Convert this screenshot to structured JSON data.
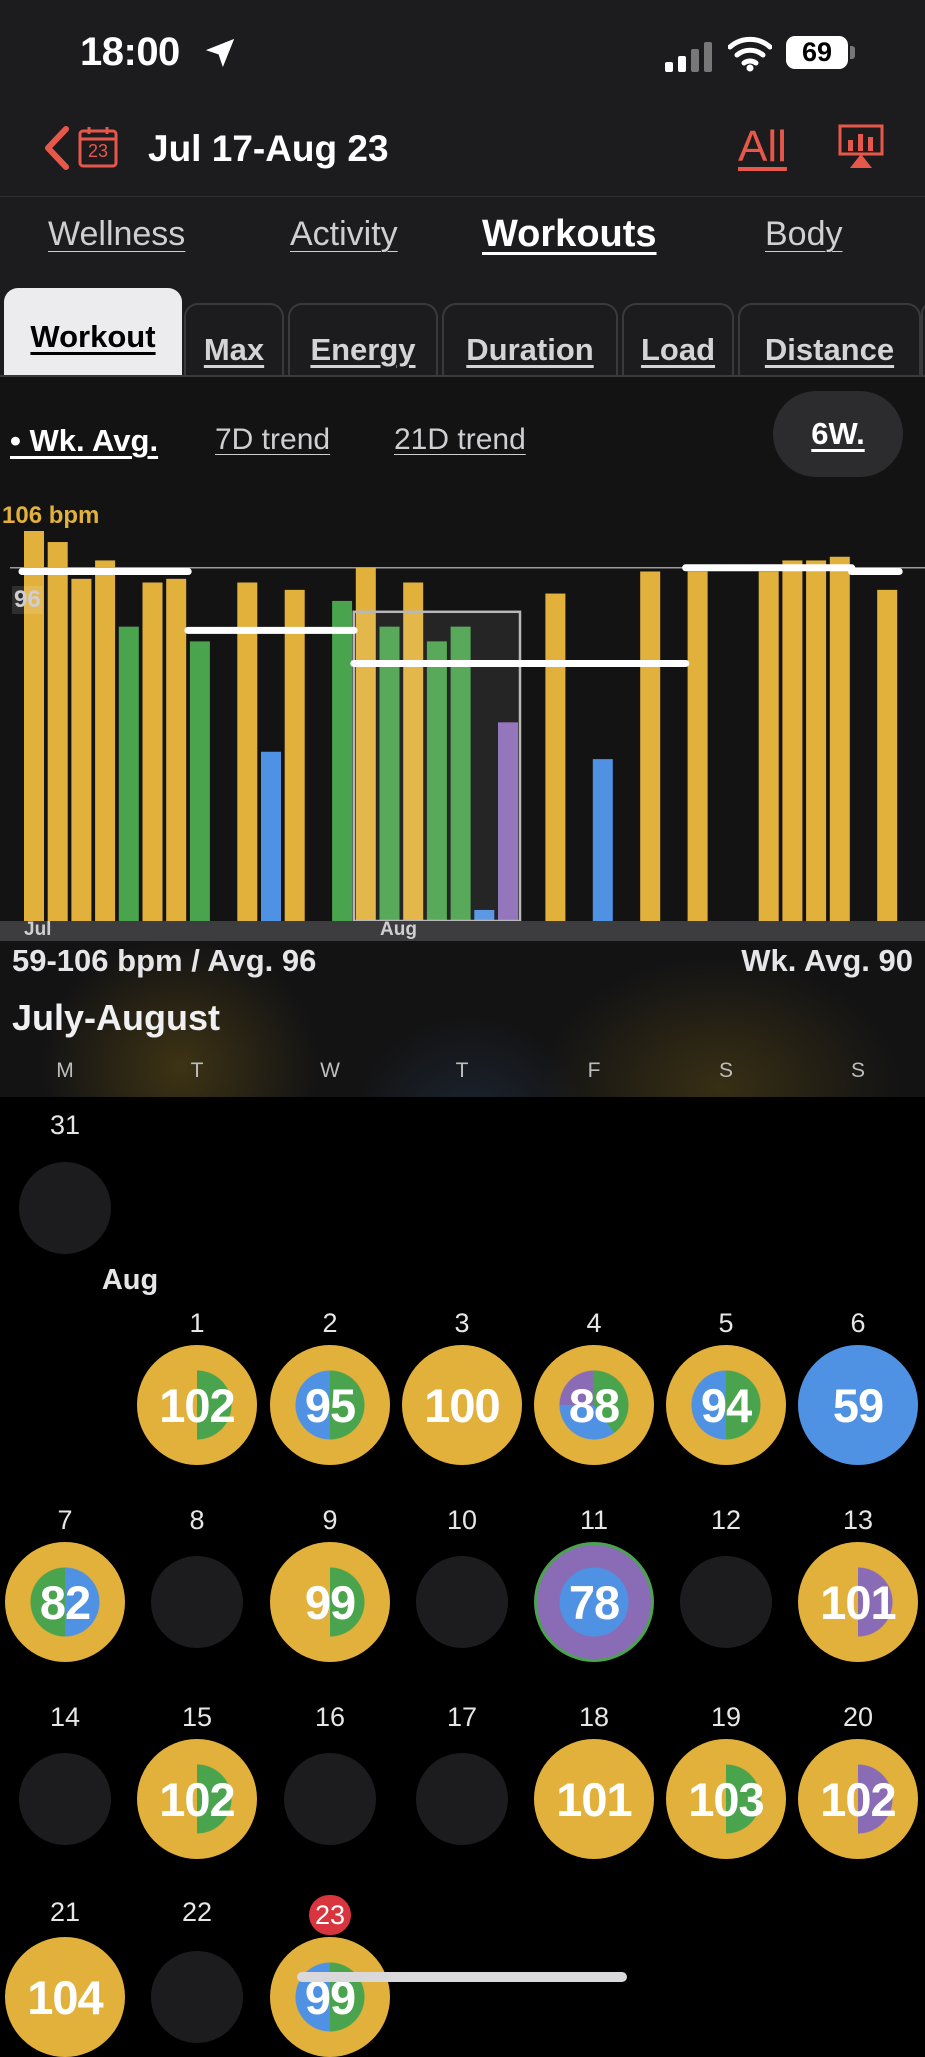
{
  "status_bar": {
    "time": "18:00",
    "battery": "69"
  },
  "header": {
    "calendar_day": "23",
    "title": "Jul 17-Aug 23",
    "all_label": "All"
  },
  "main_tabs": [
    {
      "label": "Wellness",
      "active": false
    },
    {
      "label": "Activity",
      "active": false
    },
    {
      "label": "Workouts",
      "active": true
    },
    {
      "label": "Body",
      "active": false
    }
  ],
  "sub_tabs": [
    {
      "label": "Workout",
      "active": true
    },
    {
      "label": "Max",
      "active": false
    },
    {
      "label": "Energy",
      "active": false
    },
    {
      "label": "Duration",
      "active": false
    },
    {
      "label": "Load",
      "active": false
    },
    {
      "label": "Distance",
      "active": false
    }
  ],
  "trend_options": [
    {
      "label": "• Wk. Avg.",
      "active": true
    },
    {
      "label": "7D trend",
      "active": false
    },
    {
      "label": "21D trend",
      "active": false
    }
  ],
  "period_button": "6W.",
  "colors": {
    "accent": "#e8584a",
    "gold": "#e2b13c",
    "green": "#4aa34d",
    "blue": "#4f91e3",
    "purple": "#8a6bb6",
    "today": "#d9353f"
  },
  "chart_data": {
    "type": "bar",
    "max_label": "106 bpm",
    "avg_label": "96",
    "ylim": [
      0,
      106
    ],
    "average_line": 96,
    "month_labels": [
      "Jul",
      "Aug"
    ],
    "bars": [
      {
        "value": 106,
        "color": "gold"
      },
      {
        "value": 103,
        "color": "gold"
      },
      {
        "value": 93,
        "color": "gold"
      },
      {
        "value": 98,
        "color": "gold"
      },
      {
        "value": 80,
        "color": "green"
      },
      {
        "value": 92,
        "color": "gold"
      },
      {
        "value": 93,
        "color": "gold"
      },
      {
        "value": 76,
        "color": "green"
      },
      {
        "value": 0,
        "color": "gold"
      },
      {
        "value": 92,
        "color": "gold"
      },
      {
        "value": 46,
        "color": "blue"
      },
      {
        "value": 90,
        "color": "gold"
      },
      {
        "value": 0,
        "color": "gold"
      },
      {
        "value": 87,
        "color": "green"
      },
      {
        "value": 96,
        "color": "gold"
      },
      {
        "value": 80,
        "color": "green"
      },
      {
        "value": 92,
        "color": "gold"
      },
      {
        "value": 76,
        "color": "green"
      },
      {
        "value": 80,
        "color": "green"
      },
      {
        "value": 3,
        "color": "blue"
      },
      {
        "value": 54,
        "color": "purple"
      },
      {
        "value": 0,
        "color": "gold"
      },
      {
        "value": 89,
        "color": "gold"
      },
      {
        "value": 0,
        "color": "gold"
      },
      {
        "value": 44,
        "color": "blue"
      },
      {
        "value": 0,
        "color": "gold"
      },
      {
        "value": 95,
        "color": "gold"
      },
      {
        "value": 0,
        "color": "gold"
      },
      {
        "value": 95,
        "color": "gold"
      },
      {
        "value": 0,
        "color": "gold"
      },
      {
        "value": 0,
        "color": "gold"
      },
      {
        "value": 95,
        "color": "gold"
      },
      {
        "value": 98,
        "color": "gold"
      },
      {
        "value": 98,
        "color": "gold"
      },
      {
        "value": 99,
        "color": "gold"
      },
      {
        "value": 0,
        "color": "gold"
      },
      {
        "value": 90,
        "color": "gold"
      }
    ],
    "week_averages": [
      {
        "from": 0,
        "to": 6,
        "value": 95
      },
      {
        "from": 7,
        "to": 13,
        "value": 79
      },
      {
        "from": 14,
        "to": 20,
        "value": 70
      },
      {
        "from": 21,
        "to": 27,
        "value": 70
      },
      {
        "from": 28,
        "to": 34,
        "value": 96
      },
      {
        "from": 35,
        "to": 36,
        "value": 95
      }
    ],
    "selected_week": {
      "from": 14,
      "to": 20
    }
  },
  "summary": {
    "range": "59-106 bpm / Avg. 96",
    "week_avg": "Wk. Avg. 90",
    "month_title": "July-August"
  },
  "weekdays": [
    "M",
    "T",
    "W",
    "T",
    "F",
    "S",
    "S"
  ],
  "calendar": {
    "aug_label": "Aug",
    "days": [
      {
        "day": "31",
        "value": "",
        "col": 0,
        "row": 0
      },
      {
        "day": "1",
        "value": "102",
        "col": 1,
        "row": 1,
        "outer": "gold",
        "inner": [
          "green",
          "gold"
        ]
      },
      {
        "day": "2",
        "value": "95",
        "col": 2,
        "row": 1,
        "outer": "gold",
        "inner": [
          "green",
          "blue"
        ]
      },
      {
        "day": "3",
        "value": "100",
        "col": 3,
        "row": 1,
        "outer": "gold",
        "inner": [
          "gold",
          "gold"
        ]
      },
      {
        "day": "4",
        "value": "88",
        "col": 4,
        "row": 1,
        "outer": "gold",
        "inner": [
          "green",
          "blue",
          "purple"
        ]
      },
      {
        "day": "5",
        "value": "94",
        "col": 5,
        "row": 1,
        "outer": "gold",
        "inner": [
          "green",
          "blue"
        ]
      },
      {
        "day": "6",
        "value": "59",
        "col": 6,
        "row": 1,
        "outer": "blue",
        "inner": [
          "blue",
          "blue"
        ]
      },
      {
        "day": "7",
        "value": "82",
        "col": 0,
        "row": 2,
        "outer": "gold",
        "inner": [
          "blue",
          "green"
        ]
      },
      {
        "day": "8",
        "value": "",
        "col": 1,
        "row": 2
      },
      {
        "day": "9",
        "value": "99",
        "col": 2,
        "row": 2,
        "outer": "gold",
        "inner": [
          "green",
          "gold"
        ]
      },
      {
        "day": "10",
        "value": "",
        "col": 3,
        "row": 2
      },
      {
        "day": "11",
        "value": "78",
        "col": 4,
        "row": 2,
        "outer": "purple",
        "inner": [
          "blue",
          "blue"
        ],
        "border": "green"
      },
      {
        "day": "12",
        "value": "",
        "col": 5,
        "row": 2
      },
      {
        "day": "13",
        "value": "101",
        "col": 6,
        "row": 2,
        "outer": "gold",
        "inner": [
          "purple",
          "gold"
        ]
      },
      {
        "day": "14",
        "value": "",
        "col": 0,
        "row": 3
      },
      {
        "day": "15",
        "value": "102",
        "col": 1,
        "row": 3,
        "outer": "gold",
        "inner": [
          "green",
          "gold"
        ]
      },
      {
        "day": "16",
        "value": "",
        "col": 2,
        "row": 3
      },
      {
        "day": "17",
        "value": "",
        "col": 3,
        "row": 3
      },
      {
        "day": "18",
        "value": "101",
        "col": 4,
        "row": 3,
        "outer": "gold",
        "inner": [
          "gold",
          "gold"
        ]
      },
      {
        "day": "19",
        "value": "103",
        "col": 5,
        "row": 3,
        "outer": "gold",
        "inner": [
          "green",
          "gold"
        ]
      },
      {
        "day": "20",
        "value": "102",
        "col": 6,
        "row": 3,
        "outer": "gold",
        "inner": [
          "purple",
          "gold"
        ]
      },
      {
        "day": "21",
        "value": "104",
        "col": 0,
        "row": 4,
        "outer": "gold",
        "inner": [
          "gold",
          "gold"
        ]
      },
      {
        "day": "22",
        "value": "",
        "col": 1,
        "row": 4
      },
      {
        "day": "23",
        "value": "99",
        "col": 2,
        "row": 4,
        "outer": "gold",
        "inner": [
          "green",
          "blue"
        ],
        "today": true
      }
    ]
  }
}
